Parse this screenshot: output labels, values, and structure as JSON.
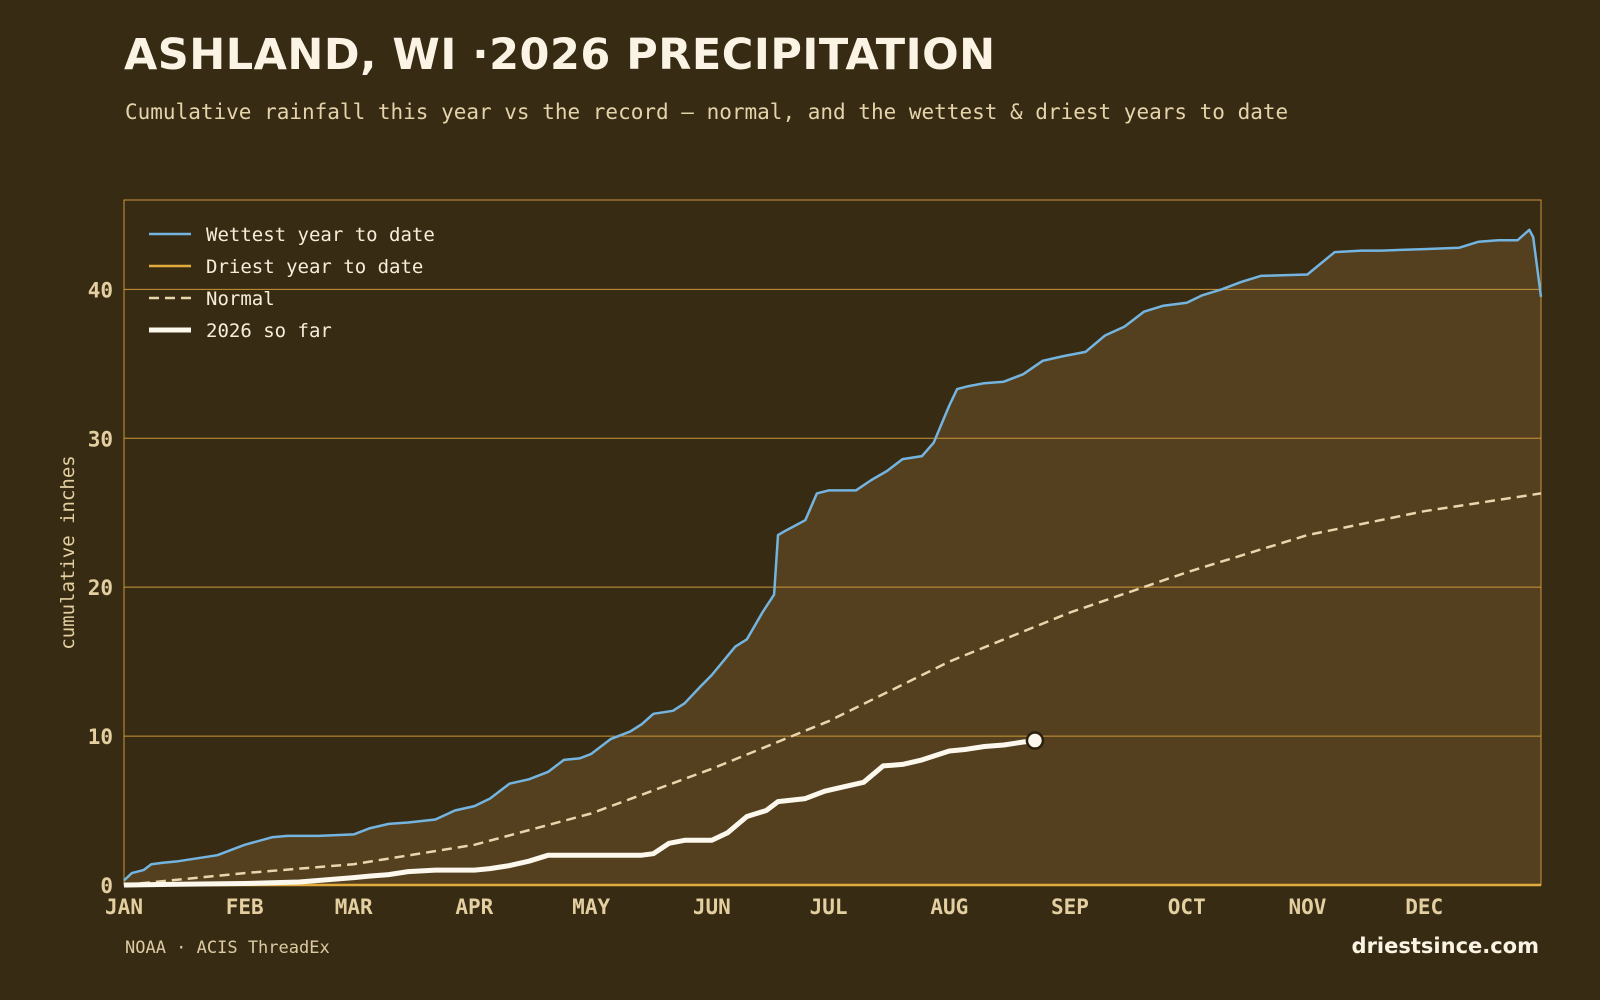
{
  "header": {
    "title": "ASHLAND, WI ·2026 PRECIPITATION",
    "subtitle": "Cumulative rainfall this year vs the record — normal, and the wettest & driest years to date"
  },
  "footer": {
    "source": "NOAA · ACIS ThreadEx",
    "brand": "driestsince.com"
  },
  "colors": {
    "background": "#382b13",
    "band_fill": "#54401e",
    "grid": "#c9963a",
    "wettest": "#74b4e0",
    "driest": "#e2ac3c",
    "normal": "#e8d6ac",
    "current": "#fdf8ee",
    "tick_text": "#e3cfa0"
  },
  "chart_data": {
    "type": "line",
    "ylabel": "cumulative inches",
    "xlabel": "",
    "ylim": [
      0,
      46
    ],
    "xlim": [
      "2026-01-01",
      "2026-12-31"
    ],
    "yticks": [
      0,
      10,
      20,
      30,
      40
    ],
    "x_tick_labels": [
      "JAN",
      "FEB",
      "MAR",
      "APR",
      "MAY",
      "JUN",
      "JUL",
      "AUG",
      "SEP",
      "OCT",
      "NOV",
      "DEC"
    ],
    "x_tick_dates": [
      "2026-01-01",
      "2026-02-01",
      "2026-03-01",
      "2026-04-01",
      "2026-05-01",
      "2026-06-01",
      "2026-07-01",
      "2026-08-01",
      "2026-09-01",
      "2026-10-01",
      "2026-11-01",
      "2026-12-01"
    ],
    "grid": "horizontal",
    "legend_position": "top-left",
    "shaded_band": "between driest and wettest year to date",
    "series": [
      {
        "name": "Wettest year to date",
        "style": "solid",
        "x": [
          "2026-01-01",
          "2026-01-03",
          "2026-01-06",
          "2026-01-08",
          "2026-01-11",
          "2026-01-15",
          "2026-01-20",
          "2026-01-25",
          "2026-01-27",
          "2026-02-01",
          "2026-02-08",
          "2026-02-12",
          "2026-02-20",
          "2026-03-01",
          "2026-03-05",
          "2026-03-10",
          "2026-03-15",
          "2026-03-22",
          "2026-03-27",
          "2026-04-01",
          "2026-04-05",
          "2026-04-10",
          "2026-04-15",
          "2026-04-20",
          "2026-04-24",
          "2026-04-28",
          "2026-05-01",
          "2026-05-06",
          "2026-05-11",
          "2026-05-14",
          "2026-05-17",
          "2026-05-22",
          "2026-05-25",
          "2026-05-29",
          "2026-06-01",
          "2026-06-07",
          "2026-06-10",
          "2026-06-14",
          "2026-06-17",
          "2026-06-18",
          "2026-06-20",
          "2026-06-25",
          "2026-06-28",
          "2026-07-01",
          "2026-07-03",
          "2026-07-08",
          "2026-07-12",
          "2026-07-16",
          "2026-07-20",
          "2026-07-25",
          "2026-07-28",
          "2026-08-01",
          "2026-08-03",
          "2026-08-06",
          "2026-08-10",
          "2026-08-15",
          "2026-08-20",
          "2026-08-25",
          "2026-08-30",
          "2026-09-05",
          "2026-09-10",
          "2026-09-15",
          "2026-09-20",
          "2026-09-25",
          "2026-10-01",
          "2026-10-05",
          "2026-10-10",
          "2026-10-15",
          "2026-10-20",
          "2026-11-01",
          "2026-11-08",
          "2026-11-15",
          "2026-11-20",
          "2026-12-01",
          "2026-12-10",
          "2026-12-15",
          "2026-12-20",
          "2026-12-25",
          "2026-12-28",
          "2026-12-29",
          "2026-12-31"
        ],
        "y": [
          0.3,
          0.8,
          1.0,
          1.4,
          1.5,
          1.6,
          1.8,
          2.0,
          2.2,
          2.7,
          3.2,
          3.3,
          3.3,
          3.4,
          3.8,
          4.1,
          4.2,
          4.4,
          5.0,
          5.3,
          5.8,
          6.8,
          7.1,
          7.6,
          8.4,
          8.5,
          8.8,
          9.8,
          10.3,
          10.8,
          11.5,
          11.7,
          12.2,
          13.3,
          14.1,
          16.0,
          16.5,
          18.3,
          19.5,
          23.5,
          23.8,
          24.5,
          26.3,
          26.5,
          26.5,
          26.5,
          27.2,
          27.8,
          28.6,
          28.8,
          29.7,
          32.2,
          33.3,
          33.5,
          33.7,
          33.8,
          34.3,
          35.2,
          35.5,
          35.8,
          36.9,
          37.5,
          38.5,
          38.9,
          39.1,
          39.6,
          40.0,
          40.5,
          40.9,
          41.0,
          42.5,
          42.6,
          42.6,
          42.7,
          42.8,
          43.2,
          43.3,
          43.3,
          44.0,
          43.5,
          39.5
        ]
      },
      {
        "name": "Driest year to date",
        "style": "solid",
        "x": [
          "2026-01-01",
          "2026-12-31"
        ],
        "y": [
          0,
          0
        ]
      },
      {
        "name": "Normal",
        "style": "dashed",
        "x": [
          "2026-01-01",
          "2026-02-01",
          "2026-03-01",
          "2026-04-01",
          "2026-05-01",
          "2026-06-01",
          "2026-07-01",
          "2026-08-01",
          "2026-09-01",
          "2026-10-01",
          "2026-11-01",
          "2026-12-01",
          "2026-12-31"
        ],
        "y": [
          0.0,
          0.8,
          1.4,
          2.7,
          4.8,
          7.8,
          11.0,
          15.0,
          18.3,
          21.0,
          23.5,
          25.1,
          26.3
        ]
      },
      {
        "name": "2026 so far",
        "style": "bold",
        "x": [
          "2026-01-01",
          "2026-01-15",
          "2026-02-01",
          "2026-02-15",
          "2026-03-01",
          "2026-03-05",
          "2026-03-10",
          "2026-03-15",
          "2026-03-22",
          "2026-04-01",
          "2026-04-05",
          "2026-04-10",
          "2026-04-15",
          "2026-04-20",
          "2026-04-25",
          "2026-05-01",
          "2026-05-10",
          "2026-05-14",
          "2026-05-17",
          "2026-05-21",
          "2026-05-25",
          "2026-06-01",
          "2026-06-05",
          "2026-06-10",
          "2026-06-15",
          "2026-06-18",
          "2026-06-25",
          "2026-06-30",
          "2026-07-05",
          "2026-07-10",
          "2026-07-15",
          "2026-07-20",
          "2026-07-25",
          "2026-08-01",
          "2026-08-05",
          "2026-08-10",
          "2026-08-15",
          "2026-08-20",
          "2026-08-23"
        ],
        "y": [
          0.0,
          0.05,
          0.1,
          0.2,
          0.5,
          0.6,
          0.7,
          0.9,
          1.0,
          1.0,
          1.1,
          1.3,
          1.6,
          2.0,
          2.0,
          2.0,
          2.0,
          2.0,
          2.1,
          2.8,
          3.0,
          3.0,
          3.5,
          4.6,
          5.0,
          5.6,
          5.8,
          6.3,
          6.6,
          6.9,
          8.0,
          8.1,
          8.4,
          9.0,
          9.1,
          9.3,
          9.4,
          9.6,
          9.7
        ]
      }
    ]
  }
}
